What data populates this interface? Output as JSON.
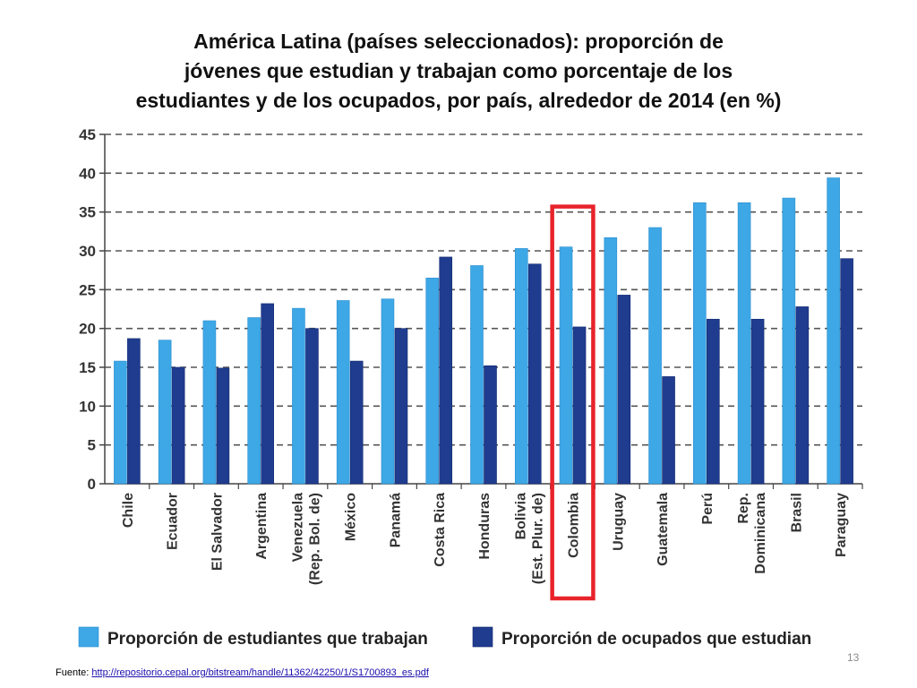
{
  "slide": {
    "title_lines": [
      "América Latina (países seleccionados): proporción de",
      "jóvenes que estudian y trabajan como porcentaje de los",
      "estudiantes y de los ocupados, por país, alrededor de 2014 (en %)"
    ],
    "source_label": "Fuente:",
    "source_url": "http://repositorio.cepal.org/bitstream/handle/11362/42250/1/S1700893_es.pdf",
    "slide_number": "13"
  },
  "chart_data": {
    "type": "bar",
    "title": "América Latina (países seleccionados): proporción de jóvenes que estudian y trabajan como porcentaje de los estudiantes y de los ocupados, por país, alrededor de 2014 (en %)",
    "categories": [
      [
        "Chile"
      ],
      [
        "Ecuador"
      ],
      [
        "El Salvador"
      ],
      [
        "Argentina"
      ],
      [
        "Venezuela",
        "(Rep. Bol. de)"
      ],
      [
        "México"
      ],
      [
        "Panamá"
      ],
      [
        "Costa Rica"
      ],
      [
        "Honduras"
      ],
      [
        "Bolivia",
        "(Est. Plur. de)"
      ],
      [
        "Colombia"
      ],
      [
        "Uruguay"
      ],
      [
        "Guatemala"
      ],
      [
        "Perú"
      ],
      [
        "Rep.",
        "Dominicana"
      ],
      [
        "Brasil"
      ],
      [
        "Paraguay"
      ]
    ],
    "series": [
      {
        "name": "Proporción de estudiantes que trabajan",
        "color": "#3ea7e6",
        "values": [
          15.8,
          18.5,
          21.0,
          21.4,
          22.6,
          23.6,
          23.8,
          26.5,
          28.1,
          30.3,
          30.5,
          31.7,
          33.0,
          36.2,
          36.2,
          36.8,
          39.4
        ]
      },
      {
        "name": "Proporción de ocupados que estudian",
        "color": "#1f3c8f",
        "values": [
          18.7,
          15.0,
          14.9,
          23.2,
          20.0,
          15.8,
          20.0,
          29.2,
          15.2,
          28.3,
          20.2,
          24.3,
          13.8,
          21.2,
          21.2,
          22.8,
          29.0
        ]
      }
    ],
    "ylim": [
      0,
      45
    ],
    "yticks": [
      0,
      5,
      10,
      15,
      20,
      25,
      30,
      35,
      40,
      45
    ],
    "grid": "dashed-horizontal",
    "legend_position": "bottom",
    "highlight": {
      "category_index": 10,
      "color": "#e8232a"
    }
  }
}
